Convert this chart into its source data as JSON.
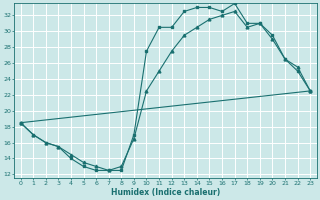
{
  "xlabel": "Humidex (Indice chaleur)",
  "xlim": [
    -0.5,
    23.5
  ],
  "ylim": [
    11.5,
    33.5
  ],
  "xticks": [
    0,
    1,
    2,
    3,
    4,
    5,
    6,
    7,
    8,
    9,
    10,
    11,
    12,
    13,
    14,
    15,
    16,
    17,
    18,
    19,
    20,
    21,
    22,
    23
  ],
  "yticks": [
    12,
    14,
    16,
    18,
    20,
    22,
    24,
    26,
    28,
    30,
    32
  ],
  "bg_color": "#cce8e8",
  "line_color": "#1a7070",
  "grid_color": "#ffffff",
  "curve1_x": [
    0,
    1,
    2,
    3,
    4,
    5,
    6,
    7,
    8,
    9,
    10,
    11,
    12,
    13,
    14,
    15,
    16,
    17,
    18,
    19,
    20,
    21,
    22,
    23
  ],
  "curve1_y": [
    18.5,
    17.0,
    16.0,
    15.5,
    14.0,
    13.0,
    12.5,
    12.5,
    12.5,
    17.0,
    27.5,
    30.5,
    30.5,
    32.5,
    33.0,
    33.0,
    32.5,
    33.5,
    31.0,
    31.0,
    29.5,
    26.5,
    25.0,
    22.5
  ],
  "curve2_x": [
    0,
    1,
    2,
    3,
    4,
    5,
    6,
    7,
    8,
    9,
    10,
    11,
    12,
    13,
    14,
    15,
    16,
    17,
    18,
    19,
    20,
    21,
    22,
    23
  ],
  "curve2_y": [
    18.5,
    17.0,
    16.0,
    15.5,
    14.5,
    13.5,
    13.0,
    12.5,
    13.0,
    16.5,
    22.5,
    25.0,
    27.5,
    29.5,
    30.5,
    31.5,
    32.0,
    32.5,
    30.5,
    31.0,
    29.0,
    26.5,
    25.5,
    22.5
  ],
  "curve3_x": [
    0,
    23
  ],
  "curve3_y": [
    18.5,
    22.5
  ]
}
